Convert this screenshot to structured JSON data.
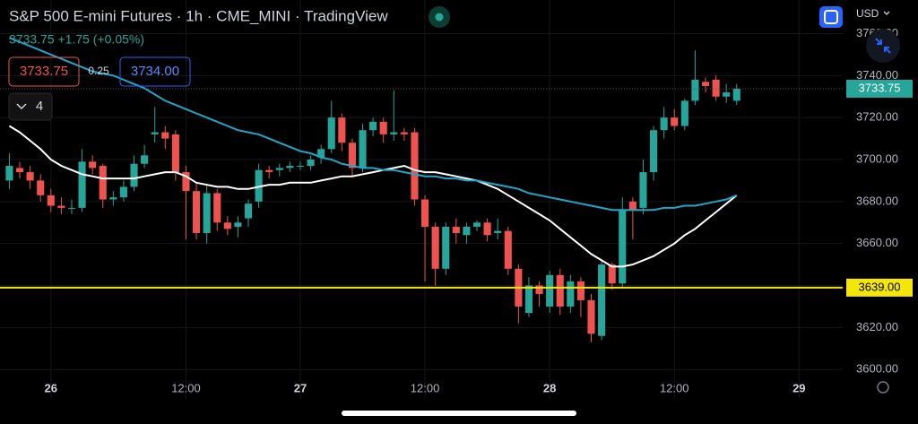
{
  "ui": {
    "title": "S&P 500 E-mini Futures · 1h · CME_MINI · TradingView",
    "quote": "3733.75 +1.75 (+0.05%)",
    "sell": "3733.75",
    "spread": "0.25",
    "buy": "3734.00",
    "indicators": "4",
    "currency": "USD"
  },
  "chart_data": {
    "type": "candlestick",
    "x": [
      0,
      1,
      2,
      3,
      4,
      5,
      6,
      7,
      8,
      9,
      10,
      11,
      12,
      13,
      14,
      15,
      16,
      17,
      18,
      19,
      20,
      21,
      22,
      23,
      24,
      25,
      26,
      27,
      28,
      29,
      30,
      31,
      32,
      33,
      34,
      35,
      36,
      37,
      38,
      39,
      40,
      41,
      42,
      43,
      44,
      45,
      46,
      47,
      48,
      49,
      50,
      51,
      52,
      53,
      54,
      55,
      56,
      57,
      58,
      59,
      60,
      61,
      62,
      63,
      64,
      65,
      66,
      67,
      68,
      69,
      70
    ],
    "open": [
      3690,
      3696,
      3694,
      3690,
      3683,
      3678,
      3677,
      3677,
      3699,
      3697,
      3681,
      3682,
      3687,
      3698,
      3712,
      3713,
      3712,
      3694,
      3685,
      3665,
      3684,
      3670,
      3668,
      3672,
      3680,
      3695,
      3695,
      3696,
      3697,
      3697,
      3701,
      3705,
      3720,
      3708,
      3696,
      3714,
      3718,
      3712,
      3713,
      3713,
      3681,
      3668,
      3648,
      3668,
      3664,
      3668,
      3670,
      3665,
      3666,
      3648,
      3627,
      3640,
      3630,
      3645,
      3630,
      3642,
      3633,
      3616,
      3650,
      3641,
      3680,
      3677,
      3694,
      3714,
      3720,
      3716,
      3728,
      3737,
      3738,
      3730,
      3728
    ],
    "high": [
      3703,
      3699,
      3697,
      3693,
      3686,
      3682,
      3681,
      3705,
      3702,
      3698,
      3685,
      3690,
      3702,
      3707,
      3725,
      3716,
      3714,
      3697,
      3689,
      3688,
      3686,
      3673,
      3673,
      3681,
      3698,
      3697,
      3698,
      3699,
      3699,
      3702,
      3707,
      3728,
      3722,
      3710,
      3717,
      3720,
      3720,
      3733,
      3715,
      3715,
      3683,
      3670,
      3670,
      3672,
      3670,
      3671,
      3672,
      3672,
      3668,
      3650,
      3644,
      3642,
      3647,
      3648,
      3645,
      3644,
      3636,
      3652,
      3651,
      3682,
      3682,
      3700,
      3716,
      3725,
      3724,
      3729,
      3752,
      3739,
      3740,
      3736,
      3736
    ],
    "low": [
      3686,
      3691,
      3686,
      3680,
      3675,
      3674,
      3674,
      3675,
      3693,
      3677,
      3678,
      3680,
      3685,
      3696,
      3708,
      3705,
      3690,
      3662,
      3662,
      3660,
      3666,
      3664,
      3663,
      3668,
      3677,
      3691,
      3692,
      3694,
      3695,
      3695,
      3698,
      3703,
      3704,
      3692,
      3694,
      3711,
      3708,
      3709,
      3709,
      3678,
      3642,
      3640,
      3645,
      3660,
      3660,
      3666,
      3661,
      3662,
      3645,
      3622,
      3625,
      3630,
      3627,
      3626,
      3627,
      3625,
      3613,
      3614,
      3638,
      3639,
      3662,
      3674,
      3690,
      3710,
      3714,
      3714,
      3726,
      3732,
      3728,
      3727,
      3726
    ],
    "close": [
      3697,
      3694,
      3690,
      3683,
      3678,
      3677,
      3677,
      3699,
      3696,
      3681,
      3682,
      3687,
      3698,
      3702,
      3713,
      3710,
      3694,
      3685,
      3665,
      3684,
      3670,
      3667,
      3670,
      3679,
      3695,
      3694,
      3696,
      3697,
      3697,
      3700,
      3705,
      3720,
      3708,
      3696,
      3714,
      3718,
      3712,
      3713,
      3712,
      3681,
      3668,
      3648,
      3668,
      3665,
      3668,
      3670,
      3664,
      3666,
      3648,
      3630,
      3640,
      3636,
      3645,
      3630,
      3642,
      3633,
      3617,
      3650,
      3641,
      3676,
      3676,
      3694,
      3714,
      3720,
      3716,
      3728,
      3738,
      3735,
      3730,
      3732,
      3733.75
    ],
    "up_color": "#26a69a",
    "down_color": "#ef5350",
    "lines": [
      {
        "color": "#ffffff",
        "values": [
          3716,
          3713,
          3709,
          3705,
          3700,
          3697,
          3695,
          3693,
          3692,
          3691,
          3691,
          3691,
          3691,
          3692,
          3693,
          3694,
          3694,
          3692,
          3689,
          3688,
          3687,
          3687,
          3686,
          3686,
          3687,
          3688,
          3688,
          3689,
          3689,
          3689,
          3690,
          3691,
          3692,
          3692,
          3693,
          3694,
          3695,
          3696,
          3697,
          3695,
          3694,
          3694,
          3693,
          3692,
          3691,
          3690,
          3688,
          3686,
          3683,
          3680,
          3677,
          3674,
          3671,
          3667,
          3663,
          3659,
          3655,
          3652,
          3649,
          3649,
          3650,
          3652,
          3654,
          3657,
          3660,
          3664,
          3667,
          3671,
          3675,
          3679,
          3683
        ]
      },
      {
        "color": "#1ea7c9",
        "values": [
          3758,
          3756,
          3754,
          3752,
          3750,
          3748,
          3746,
          3744,
          3742,
          3741,
          3740,
          3738,
          3736,
          3734,
          3731,
          3728,
          3726,
          3724,
          3722,
          3720,
          3718,
          3716,
          3714,
          3713,
          3712,
          3710,
          3708,
          3706,
          3704,
          3703,
          3701,
          3700,
          3698,
          3697,
          3696,
          3696,
          3695,
          3695,
          3694,
          3693,
          3692,
          3692,
          3691,
          3691,
          3690,
          3690,
          3689,
          3688,
          3687,
          3686,
          3684,
          3683,
          3682,
          3681,
          3680,
          3679,
          3678,
          3677,
          3676,
          3676,
          3676,
          3676,
          3676,
          3677,
          3677,
          3678,
          3678,
          3679,
          3680,
          3681,
          3683
        ]
      }
    ],
    "hline": {
      "value": 3639,
      "label": "3639.00",
      "color": "#f5e60a"
    },
    "xlim": [
      -0.9,
      80.2
    ],
    "xticks": [
      {
        "value": 4,
        "label": "26"
      },
      {
        "value": 17,
        "label": "12:00"
      },
      {
        "value": 28,
        "label": "27"
      },
      {
        "value": 40,
        "label": "12:00"
      },
      {
        "value": 52,
        "label": "28"
      },
      {
        "value": 64,
        "label": "12:00"
      },
      {
        "value": 76,
        "label": "29"
      }
    ],
    "ylim": [
      3586,
      3776
    ],
    "yticks": [
      {
        "value": 3600,
        "label": "3600.00"
      },
      {
        "value": 3620,
        "label": "3620.00"
      },
      {
        "value": 3640,
        "label": "3640.00"
      },
      {
        "value": 3660,
        "label": "3660.00"
      },
      {
        "value": 3680,
        "label": "3680.00"
      },
      {
        "value": 3700,
        "label": "3700.00"
      },
      {
        "value": 3720,
        "label": "3720.00"
      },
      {
        "value": 3740,
        "label": "3740.00"
      },
      {
        "value": 3760,
        "label": "3760.00"
      }
    ],
    "grid": true
  }
}
